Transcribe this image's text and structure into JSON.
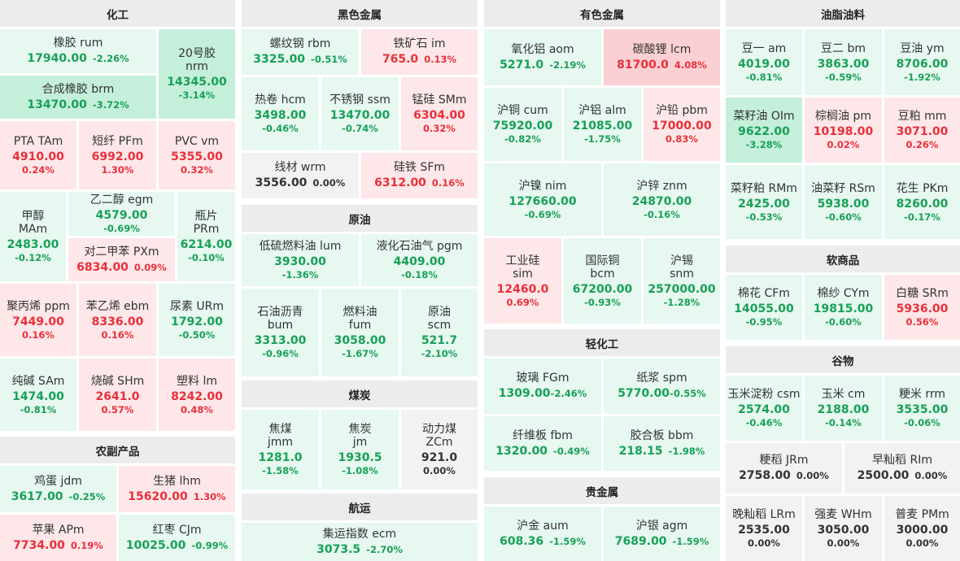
{
  "sections": {
    "chem": "化工",
    "agri": "农副产品",
    "ferrous": "黑色金属",
    "crude": "原油",
    "coal": "煤炭",
    "ship": "航运",
    "nonferrous": "有色金属",
    "light": "轻化工",
    "precious": "贵金属",
    "oil": "油脂油料",
    "soft": "软商品",
    "grain": "谷物"
  },
  "tiles": [
    {
      "name": "橡胶  rum",
      "value": "17940.00",
      "change": "-2.26%"
    },
    {
      "name": "20号胶\nnrm",
      "value": "14345.00",
      "change": "-3.14%"
    },
    {
      "name": "合成橡胶  brm",
      "value": "13470.00",
      "change": "-3.72%"
    },
    {
      "name": "PTA  TAm",
      "value": "4910.00",
      "change": "0.24%"
    },
    {
      "name": "短纤  PFm",
      "value": "6992.00",
      "change": "1.30%"
    },
    {
      "name": "PVC  vm",
      "value": "5355.00",
      "change": "0.32%"
    },
    {
      "name": "甲醇\nMAm",
      "value": "2483.00",
      "change": "-0.12%"
    },
    {
      "name": "乙二醇  egm",
      "value": "4579.00",
      "change": "-0.69%"
    },
    {
      "name": "瓶片\nPRm",
      "value": "6214.00",
      "change": "-0.10%"
    },
    {
      "name": "对二甲苯  PXm",
      "value": "6834.00",
      "change": "0.09%"
    },
    {
      "name": "聚丙烯  ppm",
      "value": "7449.00",
      "change": "0.16%"
    },
    {
      "name": "苯乙烯  ebm",
      "value": "8336.00",
      "change": "0.16%"
    },
    {
      "name": "尿素  URm",
      "value": "1792.00",
      "change": "-0.50%"
    },
    {
      "name": "纯碱  SAm",
      "value": "1474.00",
      "change": "-0.81%"
    },
    {
      "name": "烧碱  SHm",
      "value": "2641.0",
      "change": "0.57%"
    },
    {
      "name": "塑料  lm",
      "value": "8242.00",
      "change": "0.48%"
    },
    {
      "name": "鸡蛋  jdm",
      "value": "3617.00",
      "change": "-0.25%"
    },
    {
      "name": "生猪  lhm",
      "value": "15620.00",
      "change": "1.30%"
    },
    {
      "name": "苹果  APm",
      "value": "7734.00",
      "change": "0.19%"
    },
    {
      "name": "红枣  CJm",
      "value": "10025.00",
      "change": "-0.99%"
    },
    {
      "name": "螺纹钢  rbm",
      "value": "3325.00",
      "change": "-0.51%"
    },
    {
      "name": "铁矿石  im",
      "value": "765.0",
      "change": "0.13%"
    },
    {
      "name": "热卷  hcm",
      "value": "3498.00",
      "change": "-0.46%"
    },
    {
      "name": "不锈钢  ssm",
      "value": "13470.00",
      "change": "-0.74%"
    },
    {
      "name": "锰硅  SMm",
      "value": "6304.00",
      "change": "0.32%"
    },
    {
      "name": "线材  wrm",
      "value": "3556.00",
      "change": "0.00%"
    },
    {
      "name": "硅铁  SFm",
      "value": "6312.00",
      "change": "0.16%"
    },
    {
      "name": "低硫燃料油  lum",
      "value": "3930.00",
      "change": "-1.36%"
    },
    {
      "name": "液化石油气  pgm",
      "value": "4409.00",
      "change": "-0.18%"
    },
    {
      "name": "石油沥青\nbum",
      "value": "3313.00",
      "change": "-0.96%"
    },
    {
      "name": "燃料油\nfum",
      "value": "3058.00",
      "change": "-1.67%"
    },
    {
      "name": "原油\nscm",
      "value": "521.7",
      "change": "-2.10%"
    },
    {
      "name": "焦煤\njmm",
      "value": "1281.0",
      "change": "-1.58%"
    },
    {
      "name": "焦炭\njm",
      "value": "1930.5",
      "change": "-1.08%"
    },
    {
      "name": "动力煤\nZCm",
      "value": "921.0",
      "change": "0.00%"
    },
    {
      "name": "集运指数  ecm",
      "value": "3073.5",
      "change": "-2.70%"
    },
    {
      "name": "氧化铝  aom",
      "value": "5271.0",
      "change": "-2.19%"
    },
    {
      "name": "碳酸锂  lcm",
      "value": "81700.0",
      "change": "4.08%"
    },
    {
      "name": "沪铜  cum",
      "value": "75920.00",
      "change": "-0.82%"
    },
    {
      "name": "沪铝  alm",
      "value": "21085.00",
      "change": "-1.75%"
    },
    {
      "name": "沪铅  pbm",
      "value": "17000.00",
      "change": "0.83%"
    },
    {
      "name": "沪镍  nim",
      "value": "127660.00",
      "change": "-0.69%"
    },
    {
      "name": "沪锌  znm",
      "value": "24870.00",
      "change": "-0.16%"
    },
    {
      "name": "工业硅\nsim",
      "value": "12460.0",
      "change": "0.69%"
    },
    {
      "name": "国际铜\nbcm",
      "value": "67200.00",
      "change": "-0.93%"
    },
    {
      "name": "沪锡\nsnm",
      "value": "257000.00",
      "change": "-1.28%"
    },
    {
      "name": "玻璃  FGm",
      "value": "1309.00",
      "change": "-2.46%"
    },
    {
      "name": "纸浆  spm",
      "value": "5770.00",
      "change": "-0.55%"
    },
    {
      "name": "纤维板  fbm",
      "value": "1320.00",
      "change": "-0.49%"
    },
    {
      "name": "胶合板  bbm",
      "value": "218.15",
      "change": "-1.98%"
    },
    {
      "name": "沪金  aum",
      "value": "608.36",
      "change": "-1.59%"
    },
    {
      "name": "沪银  agm",
      "value": "7689.00",
      "change": "-1.59%"
    },
    {
      "name": "豆一  am",
      "value": "4019.00",
      "change": "-0.81%"
    },
    {
      "name": "豆二  bm",
      "value": "3863.00",
      "change": "-0.59%"
    },
    {
      "name": "豆油  ym",
      "value": "8706.00",
      "change": "-1.92%"
    },
    {
      "name": "菜籽油  OIm",
      "value": "9622.00",
      "change": "-3.28%"
    },
    {
      "name": "棕榈油  pm",
      "value": "10198.00",
      "change": "0.02%"
    },
    {
      "name": "豆粕  mm",
      "value": "3071.00",
      "change": "0.26%"
    },
    {
      "name": "菜籽粕  RMm",
      "value": "2425.00",
      "change": "-0.53%"
    },
    {
      "name": "油菜籽  RSm",
      "value": "5938.00",
      "change": "-0.60%"
    },
    {
      "name": "花生  PKm",
      "value": "8260.00",
      "change": "-0.17%"
    },
    {
      "name": "棉花  CFm",
      "value": "14055.00",
      "change": "-0.95%"
    },
    {
      "name": "棉纱  CYm",
      "value": "19815.00",
      "change": "-0.60%"
    },
    {
      "name": "白糖  SRm",
      "value": "5936.00",
      "change": "0.56%"
    },
    {
      "name": "玉米淀粉  csm",
      "value": "2574.00",
      "change": "-0.46%"
    },
    {
      "name": "玉米  cm",
      "value": "2188.00",
      "change": "-0.14%"
    },
    {
      "name": "粳米  rrm",
      "value": "3535.00",
      "change": "-0.06%"
    },
    {
      "name": "粳稻  JRm",
      "value": "2758.00",
      "change": "0.00%"
    },
    {
      "name": "早籼稻  RIm",
      "value": "2500.00",
      "change": "0.00%"
    },
    {
      "name": "晚籼稻  LRm",
      "value": "2535.00",
      "change": "0.00%"
    },
    {
      "name": "强麦  WHm",
      "value": "3050.00",
      "change": "0.00%"
    },
    {
      "name": "普麦  PMm",
      "value": "3000.00",
      "change": "0.00%"
    }
  ]
}
